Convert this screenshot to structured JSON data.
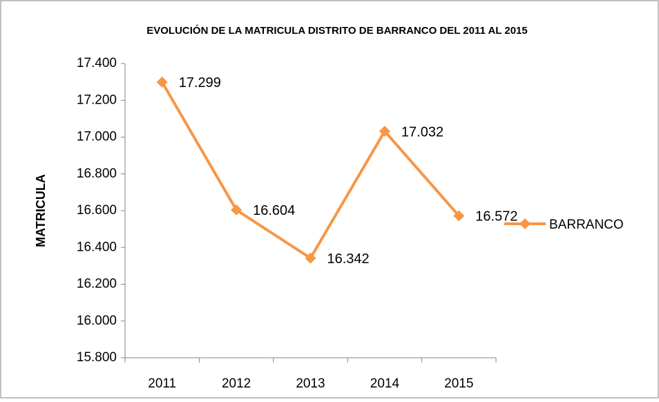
{
  "chart_data": {
    "type": "line",
    "title": "EVOLUCIÓN DE LA MATRICULA DISTRITO DE BARRANCO DEL 2011 AL 2015",
    "y_label": "MATRICULA",
    "categories": [
      "2011",
      "2012",
      "2013",
      "2014",
      "2015"
    ],
    "series": [
      {
        "name": "BARRANCO",
        "color": "#f79646",
        "values": [
          17299,
          16604,
          16342,
          17032,
          16572
        ],
        "value_labels": [
          "17.299",
          "16.604",
          "16.342",
          "17.032",
          "16.572"
        ]
      }
    ],
    "ylim": [
      15800,
      17400
    ],
    "yticks": [
      {
        "value": 15800,
        "label": "15.800"
      },
      {
        "value": 16000,
        "label": "16.000"
      },
      {
        "value": 16200,
        "label": "16.200"
      },
      {
        "value": 16400,
        "label": "16.400"
      },
      {
        "value": 16600,
        "label": "16.600"
      },
      {
        "value": 16800,
        "label": "16.800"
      },
      {
        "value": 17000,
        "label": "17.000"
      },
      {
        "value": 17200,
        "label": "17.200"
      },
      {
        "value": 17400,
        "label": "17.400"
      }
    ],
    "legend": "right"
  }
}
